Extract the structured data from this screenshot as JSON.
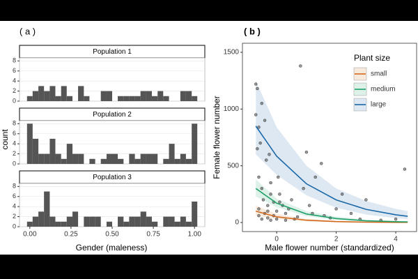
{
  "chart_data": [
    {
      "type": "histogram",
      "panel_label": "( a )",
      "xlabel": "Gender (maleness)",
      "ylabel": "count",
      "bins": [
        -0.017,
        0.017,
        0.052,
        0.086,
        0.121,
        0.155,
        0.19,
        0.224,
        0.259,
        0.293,
        0.328,
        0.362,
        0.397,
        0.431,
        0.466,
        0.5,
        0.534,
        0.569,
        0.603,
        0.638,
        0.672,
        0.707,
        0.741,
        0.776,
        0.81,
        0.845,
        0.879,
        0.914,
        0.948,
        0.983,
        1.017
      ],
      "color": "#555555",
      "facets": [
        {
          "title": "Population 1",
          "counts": [
            1,
            2,
            3,
            2,
            3,
            1,
            3,
            1,
            0,
            3,
            1,
            0,
            0,
            2,
            2,
            0,
            1,
            1,
            1,
            1,
            2,
            2,
            1,
            2,
            1,
            0,
            0,
            2,
            2,
            1
          ]
        },
        {
          "title": "Population 2",
          "counts": [
            8,
            5,
            2,
            2,
            5,
            2,
            1,
            4,
            2,
            2,
            0,
            1,
            0,
            1,
            2,
            2,
            1,
            0,
            2,
            1,
            2,
            2,
            2,
            0,
            1,
            4,
            1,
            2,
            1,
            8
          ]
        },
        {
          "title": "Population 3",
          "counts": [
            1,
            2,
            3,
            7,
            2,
            1,
            1,
            2,
            3,
            0,
            2,
            2,
            2,
            0,
            1,
            0,
            2,
            1,
            2,
            2,
            3,
            2,
            1,
            0,
            2,
            2,
            1,
            2,
            1,
            5
          ]
        }
      ],
      "xlim": [
        -0.05,
        1.05
      ],
      "xticks": [
        {
          "value": 0,
          "label": "0.00"
        },
        {
          "value": 0.25,
          "label": "0.25"
        },
        {
          "value": 0.5,
          "label": "0.50"
        },
        {
          "value": 0.75,
          "label": "0.75"
        },
        {
          "value": 1,
          "label": "1.00"
        }
      ],
      "ylim": [
        0,
        8.6
      ],
      "yticks": [
        0,
        2,
        4,
        6,
        8
      ]
    },
    {
      "type": "scatter",
      "panel_label": "( b )",
      "xlabel": "Male flower number (standardized)",
      "ylabel": "Female flower number",
      "legend_title": "Plant size",
      "legend": "top-right",
      "points": {
        "color": "#555555",
        "x": [
          -0.7,
          -0.7,
          -0.65,
          -0.65,
          -0.6,
          -0.6,
          -0.6,
          -0.55,
          -0.5,
          -0.5,
          -0.45,
          -0.4,
          -0.4,
          -0.35,
          -0.3,
          -0.3,
          -0.25,
          -0.2,
          -0.2,
          -0.1,
          -0.1,
          0,
          0,
          0.05,
          0.1,
          0.2,
          0.3,
          0.4,
          0.5,
          0.6,
          0.7,
          0.8,
          0.9,
          1,
          1.1,
          1.2,
          1.3,
          1.5,
          1.6,
          1.8,
          2,
          2.2,
          2.5,
          2.8,
          3,
          3.5,
          4,
          4.3,
          -0.6,
          -0.5,
          -0.3,
          -0.2,
          0.1,
          0.3
        ],
        "y": [
          1220,
          950,
          1180,
          650,
          840,
          400,
          120,
          700,
          1050,
          300,
          200,
          900,
          80,
          550,
          150,
          40,
          600,
          250,
          20,
          180,
          60,
          100,
          30,
          400,
          250,
          150,
          80,
          120,
          200,
          30,
          50,
          1380,
          300,
          620,
          150,
          80,
          400,
          520,
          60,
          40,
          120,
          250,
          80,
          30,
          200,
          20,
          30,
          470,
          60,
          30,
          100,
          350,
          180,
          20
        ]
      },
      "series": [
        {
          "name": "small",
          "color": "#d2691e",
          "x": [
            -0.7,
            0,
            1,
            2,
            3,
            4,
            4.4
          ],
          "values": [
            100,
            50,
            20,
            8,
            3,
            1,
            1
          ],
          "lower": [
            60,
            30,
            10,
            3,
            1,
            0,
            0
          ],
          "upper": [
            150,
            75,
            32,
            14,
            6,
            3,
            3
          ]
        },
        {
          "name": "medium",
          "color": "#1fa069",
          "x": [
            -0.7,
            0,
            1,
            2,
            3,
            4,
            4.4
          ],
          "values": [
            300,
            170,
            75,
            35,
            15,
            7,
            5
          ],
          "lower": [
            230,
            135,
            55,
            22,
            8,
            3,
            2
          ],
          "upper": [
            380,
            210,
            100,
            52,
            25,
            13,
            10
          ]
        },
        {
          "name": "large",
          "color": "#1a68a8",
          "x": [
            -0.7,
            0,
            1,
            2,
            3,
            4,
            4.4
          ],
          "values": [
            850,
            584,
            341,
            199,
            116,
            68,
            55
          ],
          "lower": [
            600,
            420,
            240,
            130,
            70,
            38,
            30
          ],
          "upper": [
            1250,
            840,
            500,
            300,
            190,
            120,
            100
          ]
        }
      ],
      "xlim": [
        -1.15,
        4.7
      ],
      "xticks": [
        0,
        2,
        4
      ],
      "ylim": [
        -80,
        1580
      ],
      "yticks": [
        0,
        500,
        1000,
        1500
      ]
    }
  ]
}
